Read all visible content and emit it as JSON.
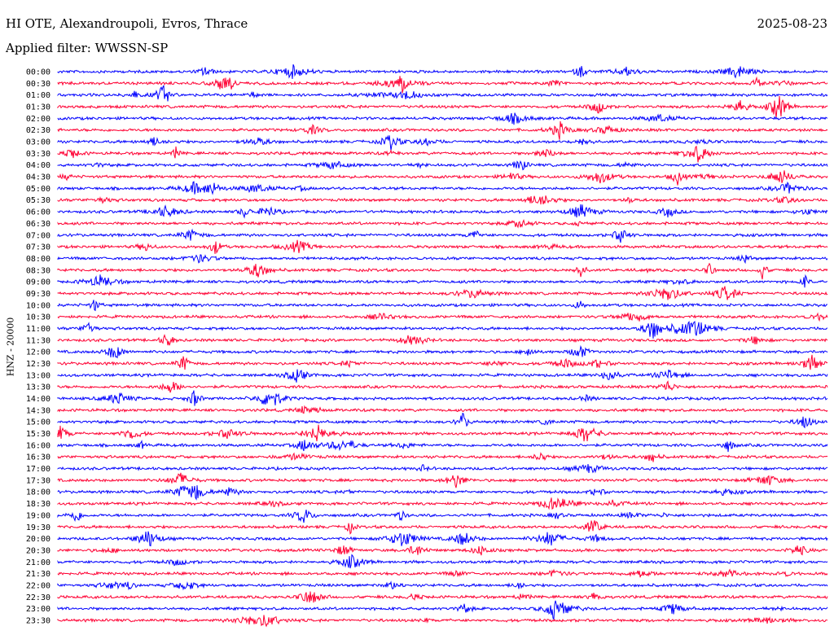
{
  "header": {
    "title": "HI OTE, Alexandroupoli, Evros, Thrace",
    "date": "2025-08-23",
    "filter": "Applied filter: WWSSN-SP",
    "ylabel": "HNZ - 20000"
  },
  "colors": {
    "odd_row": "#0000ff",
    "even_row": "#ff0033"
  },
  "chart_data": {
    "type": "line",
    "title": "HI OTE, Alexandroupoli, Evros, Thrace",
    "date": "2025-08-23",
    "filter": "WWSSN-SP",
    "ylabel": "HNZ - 20000",
    "row_interval_minutes": 30,
    "row_labels": [
      "00:00",
      "00:30",
      "01:00",
      "01:30",
      "02:00",
      "02:30",
      "03:00",
      "03:30",
      "04:00",
      "04:30",
      "05:00",
      "05:30",
      "06:00",
      "06:30",
      "07:00",
      "07:30",
      "08:00",
      "08:30",
      "09:00",
      "09:30",
      "10:00",
      "10:30",
      "11:00",
      "11:30",
      "12:00",
      "12:30",
      "13:00",
      "13:30",
      "14:00",
      "14:30",
      "15:00",
      "15:30",
      "16:00",
      "16:30",
      "17:00",
      "17:30",
      "18:00",
      "18:30",
      "19:00",
      "19:30",
      "20:00",
      "20:30",
      "21:00",
      "21:30",
      "22:00",
      "22:30",
      "23:00",
      "23:30"
    ],
    "series_colors": [
      "#0000ff",
      "#ff0033"
    ]
  }
}
